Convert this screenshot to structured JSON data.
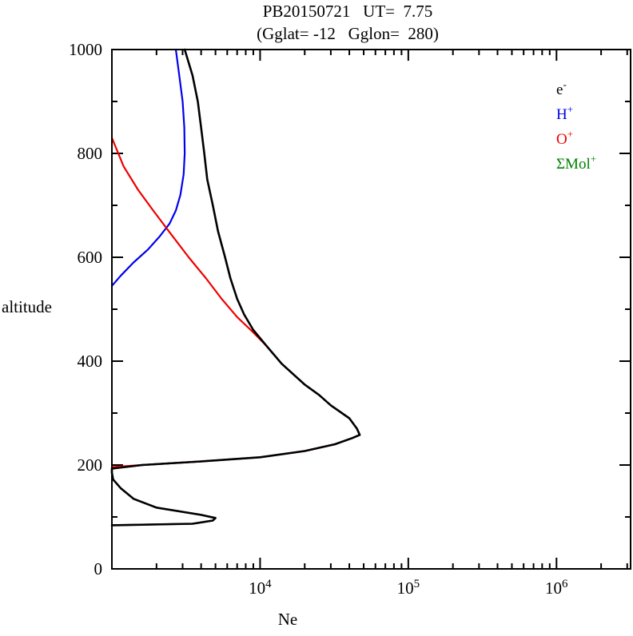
{
  "chart_data": {
    "type": "line",
    "title": "PB20150721   UT=  7.75",
    "subtitle": "(Gglat= -12   Gglon=  280)",
    "xlabel": "Ne",
    "ylabel": "altitude",
    "grid": false,
    "x_axis": {
      "scale": "log",
      "log_min": 3,
      "log_max": 6.5,
      "major_ticks": [
        {
          "value": 10000,
          "display_base": "10",
          "display_exp": "4"
        },
        {
          "value": 100000,
          "display_base": "10",
          "display_exp": "5"
        },
        {
          "value": 1000000,
          "display_base": "10",
          "display_exp": "6"
        }
      ]
    },
    "y_axis": {
      "scale": "linear",
      "min": 0,
      "max": 1000,
      "major_ticks": [
        0,
        200,
        400,
        600,
        800,
        1000
      ],
      "minor_tick_step": 100
    },
    "legend": {
      "position": "upper-right",
      "entries": [
        {
          "name": "electron",
          "label_base": "e",
          "label_sup": "-",
          "color": "#000000"
        },
        {
          "name": "hydrogen-ion",
          "label_base": "H",
          "label_sup": "+",
          "color": "#0000ee"
        },
        {
          "name": "oxygen-ion",
          "label_base": "O",
          "label_sup": "+",
          "color": "#ee0000"
        },
        {
          "name": "molecular-ions",
          "label_base": "ΣMol",
          "label_sup": "+",
          "color": "#008000"
        }
      ]
    },
    "series": [
      {
        "name": "sum-molecular-ions",
        "color": "#008000",
        "width": 2.2,
        "points": [
          [
            1000,
            84
          ],
          [
            3500,
            87
          ],
          [
            4800,
            93
          ],
          [
            5000,
            98
          ],
          [
            4000,
            104
          ],
          [
            2000,
            118
          ],
          [
            1400,
            135
          ],
          [
            1150,
            155
          ],
          [
            1020,
            172
          ],
          [
            1000,
            185
          ],
          [
            1000,
            193
          ],
          [
            1600,
            200
          ],
          [
            4000,
            207
          ],
          [
            10000,
            215
          ]
        ]
      },
      {
        "name": "h-plus",
        "color": "#0000ee",
        "width": 2.2,
        "points": [
          [
            1000,
            545
          ],
          [
            1150,
            565
          ],
          [
            1400,
            590
          ],
          [
            1750,
            615
          ],
          [
            2100,
            640
          ],
          [
            2450,
            665
          ],
          [
            2700,
            690
          ],
          [
            2900,
            720
          ],
          [
            3050,
            760
          ],
          [
            3100,
            800
          ],
          [
            3080,
            850
          ],
          [
            3000,
            900
          ],
          [
            2850,
            950
          ],
          [
            2700,
            1000
          ]
        ]
      },
      {
        "name": "o-plus",
        "color": "#ee0000",
        "width": 2.2,
        "points": [
          [
            1000,
            196
          ],
          [
            1600,
            200
          ],
          [
            4000,
            207
          ],
          [
            10000,
            215
          ],
          [
            20000,
            227
          ],
          [
            32000,
            240
          ],
          [
            42000,
            252
          ],
          [
            47000,
            258
          ],
          [
            45000,
            270
          ],
          [
            40000,
            290
          ],
          [
            30000,
            315
          ],
          [
            25000,
            335
          ],
          [
            20000,
            355
          ],
          [
            14000,
            395
          ],
          [
            11000,
            430
          ],
          [
            8800,
            458
          ],
          [
            7000,
            485
          ],
          [
            5500,
            520
          ],
          [
            4300,
            560
          ],
          [
            3300,
            600
          ],
          [
            2500,
            645
          ],
          [
            1900,
            690
          ],
          [
            1500,
            730
          ],
          [
            1200,
            775
          ],
          [
            1000,
            830
          ]
        ]
      },
      {
        "name": "e-minus",
        "color": "#000000",
        "width": 2.6,
        "points": [
          [
            1000,
            84
          ],
          [
            3500,
            87
          ],
          [
            4800,
            93
          ],
          [
            5000,
            98
          ],
          [
            4000,
            104
          ],
          [
            2000,
            118
          ],
          [
            1400,
            135
          ],
          [
            1150,
            155
          ],
          [
            1020,
            172
          ],
          [
            1000,
            185
          ],
          [
            1000,
            193
          ],
          [
            1600,
            200
          ],
          [
            4000,
            207
          ],
          [
            10000,
            215
          ],
          [
            20000,
            227
          ],
          [
            32000,
            240
          ],
          [
            42000,
            252
          ],
          [
            47000,
            258
          ],
          [
            45000,
            270
          ],
          [
            40000,
            290
          ],
          [
            30000,
            315
          ],
          [
            25000,
            335
          ],
          [
            20000,
            355
          ],
          [
            14000,
            395
          ],
          [
            11000,
            430
          ],
          [
            9000,
            460
          ],
          [
            7800,
            490
          ],
          [
            7000,
            520
          ],
          [
            6300,
            560
          ],
          [
            5800,
            600
          ],
          [
            5200,
            650
          ],
          [
            4800,
            700
          ],
          [
            4400,
            750
          ],
          [
            4200,
            800
          ],
          [
            4000,
            850
          ],
          [
            3800,
            900
          ],
          [
            3500,
            950
          ],
          [
            3100,
            1000
          ]
        ]
      }
    ]
  }
}
